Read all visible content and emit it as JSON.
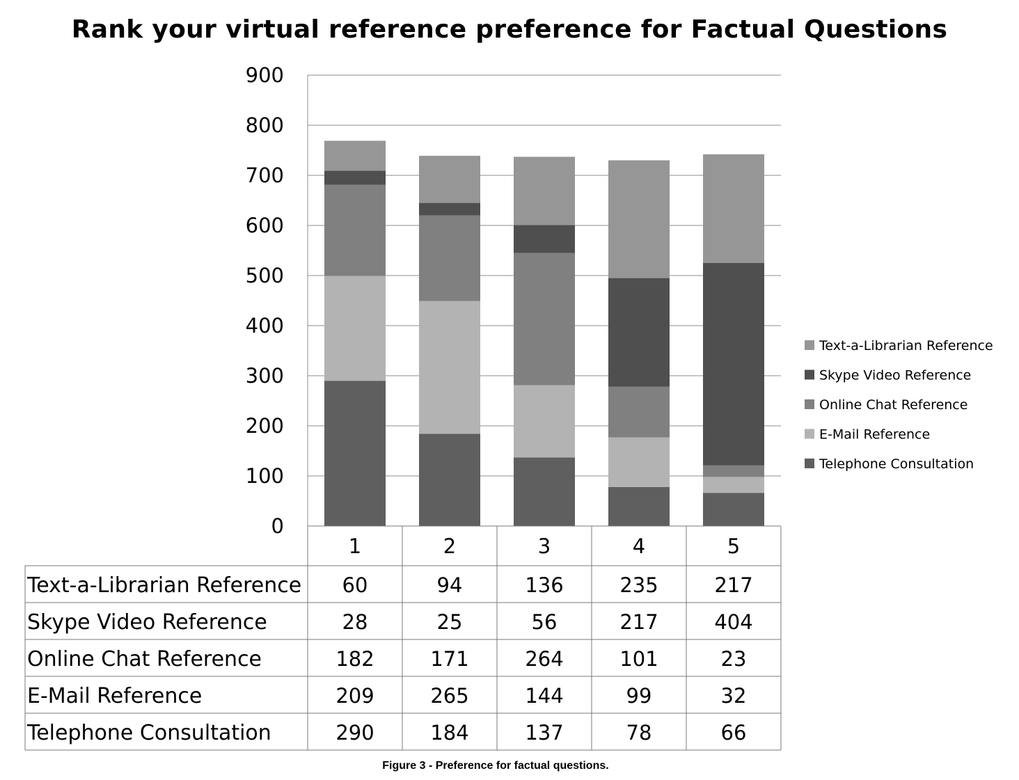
{
  "chart_data": {
    "type": "bar",
    "stacked": true,
    "title": "Rank your virtual reference preference for Factual Questions",
    "caption": "Figure 3 - Preference for factual questions.",
    "categories": [
      "1",
      "2",
      "3",
      "4",
      "5"
    ],
    "ylim": [
      0,
      900
    ],
    "yticks": [
      "0",
      "100",
      "200",
      "300",
      "400",
      "500",
      "600",
      "700",
      "800",
      "900"
    ],
    "grid": true,
    "legend_position": "right",
    "data_table": true,
    "series": [
      {
        "name": "Telephone Consultation",
        "color": "#5f5f5f",
        "values": [
          290,
          184,
          137,
          78,
          66
        ]
      },
      {
        "name": "E-Mail Reference",
        "color": "#b3b3b3",
        "values": [
          209,
          265,
          144,
          99,
          32
        ]
      },
      {
        "name": "Online Chat Reference",
        "color": "#808080",
        "values": [
          182,
          171,
          264,
          101,
          23
        ]
      },
      {
        "name": "Skype Video Reference",
        "color": "#4f4f4f",
        "values": [
          28,
          25,
          56,
          217,
          404
        ]
      },
      {
        "name": "Text-a-Librarian Reference",
        "color": "#969696",
        "values": [
          60,
          94,
          136,
          235,
          217
        ]
      }
    ]
  }
}
